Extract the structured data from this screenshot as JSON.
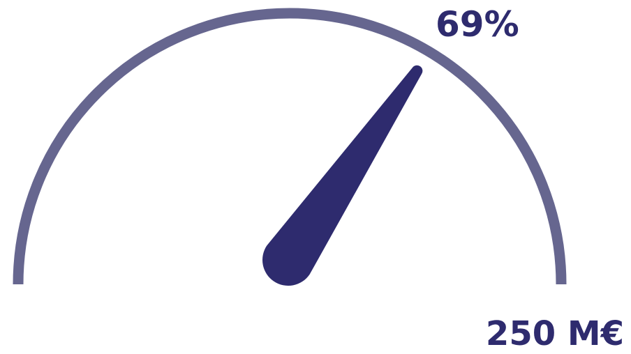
{
  "chart_data": {
    "type": "gauge",
    "value_percent": 69,
    "value_label": "69%",
    "max_label": "250 M€",
    "range": [
      0,
      100
    ]
  },
  "colors": {
    "arc": "#66668f",
    "needle": "#2e2b6e",
    "text": "#2e2b6e"
  }
}
